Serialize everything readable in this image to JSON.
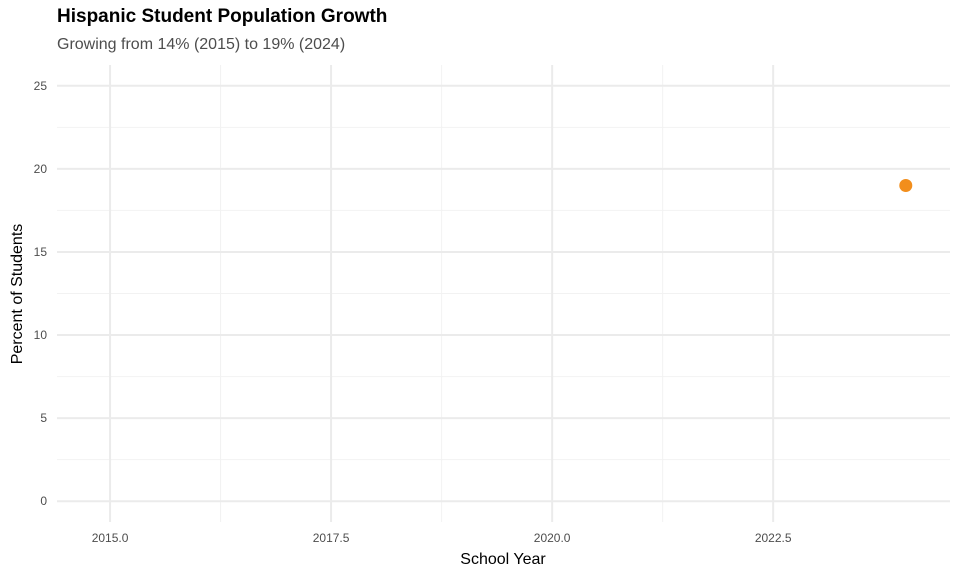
{
  "chart_data": {
    "type": "scatter",
    "title": "Hispanic Student Population Growth",
    "subtitle": "Growing from 14% (2015) to 19% (2024)",
    "xlabel": "School Year",
    "ylabel": "Percent of Students",
    "xlim": [
      2014.4,
      2024.5
    ],
    "ylim": [
      -1.25,
      26.25
    ],
    "x_ticks": [
      2015.0,
      2017.5,
      2020.0,
      2022.5
    ],
    "x_tick_labels": [
      "2015.0",
      "2017.5",
      "2020.0",
      "2022.5"
    ],
    "y_ticks": [
      0,
      5,
      10,
      15,
      20,
      25
    ],
    "y_tick_labels": [
      "0",
      "5",
      "10",
      "15",
      "20",
      "25"
    ],
    "grid": true,
    "point_color": "#f28e1c",
    "points": [
      {
        "x": 2024,
        "y": 19
      }
    ]
  }
}
